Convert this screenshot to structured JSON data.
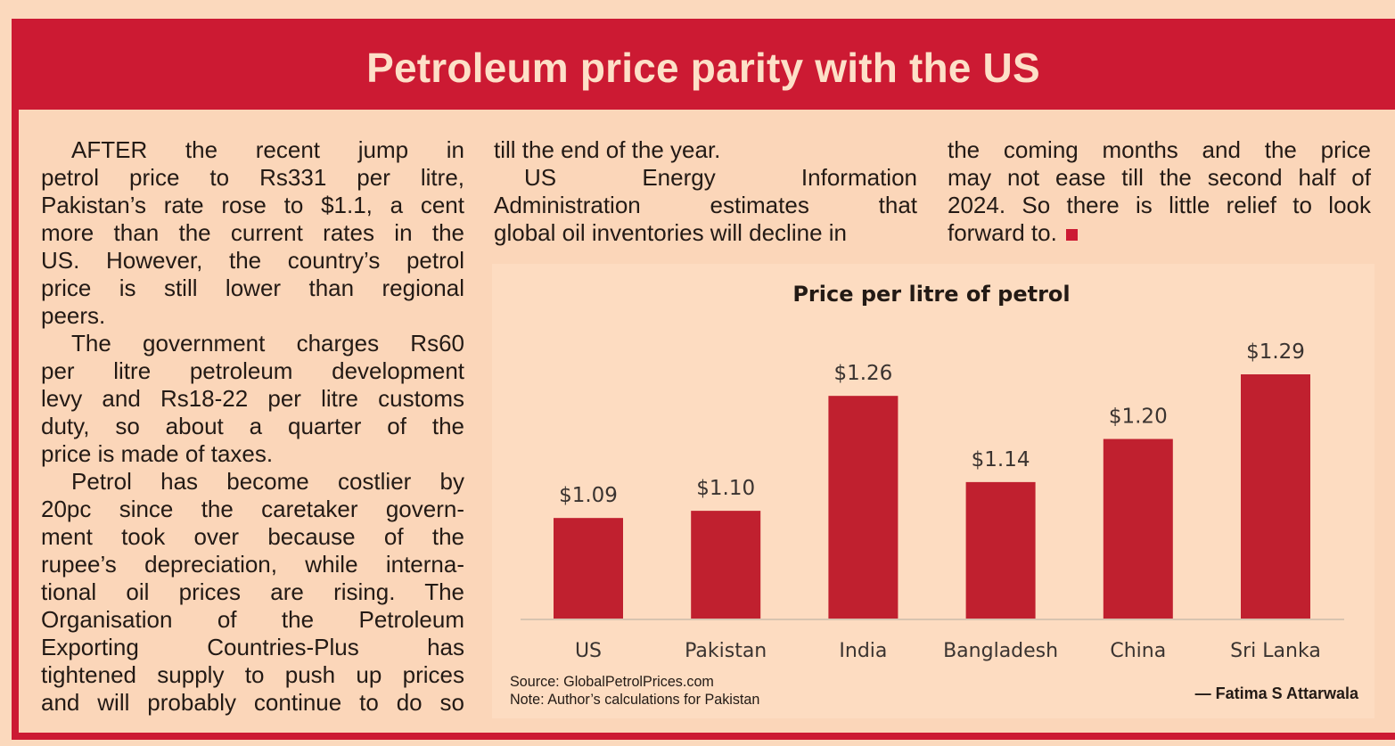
{
  "header": {
    "title": "Petroleum price parity with the US"
  },
  "article": {
    "columns": [
      [
        [
          "AFTER the recent jump in",
          "petrol price to Rs331 per litre,",
          "Pakistan’s rate rose to $1.1, a cent",
          "more than the current rates in the",
          "US. However, the country’s petrol",
          "price is still lower than regional",
          "peers."
        ],
        [
          "The government charges Rs60",
          "per litre petroleum development",
          "levy and Rs18-22 per litre customs",
          "duty, so about a quarter of the",
          "price is made of taxes."
        ],
        [
          "Petrol has become costlier by",
          "20pc since the caretaker govern-",
          "ment took over because of the",
          "rupee’s depreciation, while interna-",
          "tional oil prices are rising. The",
          "Organisation of the Petroleum",
          "Exporting Countries-Plus has",
          "tightened supply to push up prices",
          "and will probably continue to do so"
        ]
      ],
      [
        [
          "till the end of the year."
        ],
        [
          "US Energy Information",
          "Administration estimates that",
          "global oil inventories will decline in"
        ]
      ],
      [
        [
          "the coming months and the price",
          "may not ease till the second half of",
          "2024. So there is little relief to look",
          "forward to."
        ]
      ]
    ]
  },
  "chart_data": {
    "type": "bar",
    "title": "Price per litre of petrol",
    "categories": [
      "US",
      "Pakistan",
      "India",
      "Bangladesh",
      "China",
      "Sri Lanka"
    ],
    "values": [
      1.09,
      1.1,
      1.26,
      1.14,
      1.2,
      1.29
    ],
    "data_labels": [
      "$1.09",
      "$1.10",
      "$1.26",
      "$1.14",
      "$1.20",
      "$1.29"
    ],
    "xlabel": "",
    "ylabel": "",
    "ylim": [
      0.95,
      1.3
    ],
    "grid": false,
    "bar_color": "#c0202f"
  },
  "footer": {
    "source": "Source: GlobalPetrolPrices.com",
    "note": "Note: Author’s calculations for Pakistan",
    "byline": "— Fatima S Attarwala"
  },
  "colors": {
    "accent": "#cc1a33",
    "background": "#fbd9bd"
  }
}
